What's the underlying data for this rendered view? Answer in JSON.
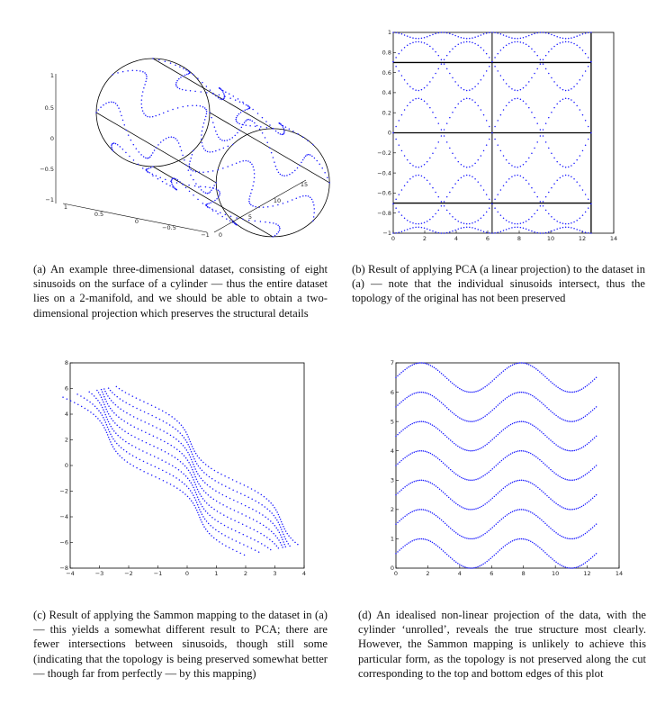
{
  "colors": {
    "series": "#1a1aff",
    "axis": "#000000",
    "background": "#ffffff"
  },
  "figures": [
    {
      "id": "a",
      "caption": "(a) An example three-dimensional dataset, consisting of eight sinusoids on the surface of a cylinder — thus the entire dataset lies on a 2-manifold, and we should be able to obtain a two-dimensional projection which preserves the structural details",
      "z_ticks": [
        "1",
        "0.5",
        "0",
        "−0.5",
        "−1"
      ],
      "x_ticks": [
        "1",
        "0.5",
        "0",
        "−0.5",
        "−1"
      ],
      "y_ticks": [
        "0",
        "5",
        "10",
        "15"
      ]
    },
    {
      "id": "b",
      "caption": "(b) Result of applying PCA (a linear projection) to the dataset in (a) — note that the individual sinusoids intersect, thus the topology of the original has not been preserved",
      "x_ticks": [
        "0",
        "2",
        "4",
        "6",
        "8",
        "10",
        "12",
        "14"
      ],
      "y_ticks": [
        "1",
        "0.8",
        "0.6",
        "0.4",
        "0.2",
        "0",
        "−0.2",
        "−0.4",
        "−0.6",
        "−0.8",
        "−1"
      ]
    },
    {
      "id": "c",
      "caption": "(c) Result of applying the Sammon mapping to the dataset in (a) — this yields a somewhat different result to PCA; there are fewer intersections between sinusoids, though still some (indicating that the topology is being preserved somewhat better — though far from perfectly — by this mapping)",
      "x_ticks": [
        "−4",
        "−3",
        "−2",
        "−1",
        "0",
        "1",
        "2",
        "3",
        "4"
      ],
      "y_ticks": [
        "8",
        "6",
        "4",
        "2",
        "0",
        "−2",
        "−4",
        "−6",
        "−8"
      ]
    },
    {
      "id": "d",
      "caption": "(d) An idealised non-linear projection of the data, with the cylinder ‘unrolled’, reveals the true structure most clearly. However, the Sammon mapping is unlikely to achieve this particular form, as the topology is not preserved along the cut corresponding to the top and bottom edges of this plot",
      "x_ticks": [
        "0",
        "2",
        "4",
        "6",
        "8",
        "10",
        "12",
        "14"
      ],
      "y_ticks": [
        "7",
        "6",
        "5",
        "4",
        "3",
        "2",
        "1",
        "0"
      ]
    }
  ],
  "chart_data": [
    {
      "type": "scatter",
      "panel": "a",
      "description_source": "3D surface plot of eight sinusoids on a cylinder",
      "xlim": [
        -1,
        1
      ],
      "ylim": [
        0,
        15
      ],
      "zlim": [
        -1,
        1
      ],
      "series": [
        {
          "values": {
            "kind": "sinusoid-on-cylinder",
            "count": 8,
            "length": 12.566,
            "amplitude": 0.35
          }
        }
      ]
    },
    {
      "type": "scatter",
      "panel": "b",
      "xlim": [
        0,
        14
      ],
      "ylim": [
        -1,
        1
      ],
      "horizontal_rules": [
        0.7,
        0,
        -0.7
      ],
      "vertical_rules": [
        6.28
      ],
      "x_range_data": [
        0,
        12.566
      ]
    },
    {
      "type": "scatter",
      "panel": "c",
      "xlim": [
        -4,
        4
      ],
      "ylim": [
        -8,
        8
      ]
    },
    {
      "type": "line",
      "panel": "d",
      "xlim": [
        0,
        14
      ],
      "ylim": [
        0,
        7
      ],
      "x_range_data": [
        0,
        12.566
      ],
      "series": [
        {
          "values": {
            "offset": 0.5,
            "amplitude": 0.5
          }
        },
        {
          "values": {
            "offset": 1.5,
            "amplitude": 0.5
          }
        },
        {
          "values": {
            "offset": 2.5,
            "amplitude": 0.5
          }
        },
        {
          "values": {
            "offset": 3.5,
            "amplitude": 0.5
          }
        },
        {
          "values": {
            "offset": 4.5,
            "amplitude": 0.5
          }
        },
        {
          "values": {
            "offset": 5.5,
            "amplitude": 0.5
          }
        },
        {
          "values": {
            "offset": 6.5,
            "amplitude": 0.5
          }
        }
      ]
    }
  ]
}
